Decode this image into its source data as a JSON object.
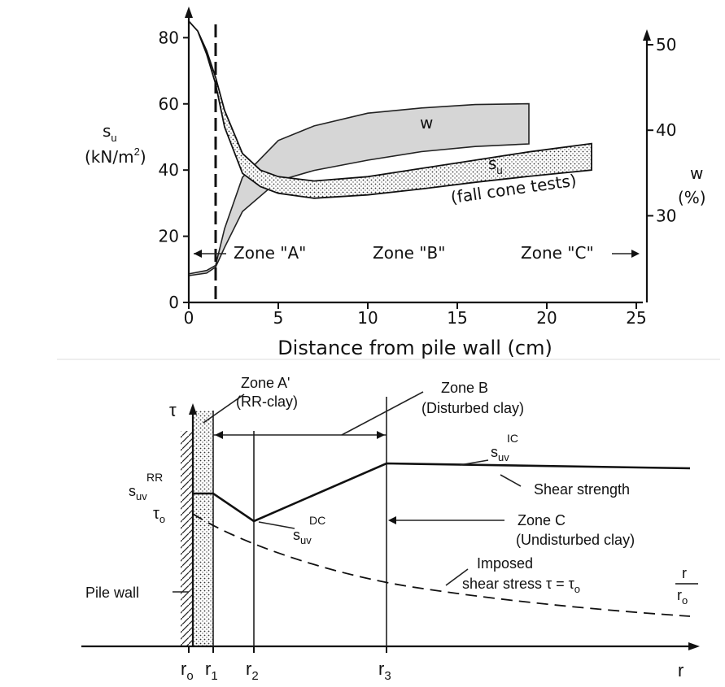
{
  "chart_data": [
    {
      "type": "line",
      "xlabel": "Distance from pile wall (cm)",
      "ylabel_left": "s",
      "ylabel_left_sub": "u",
      "ylabel_left_unit": "(kN/m",
      "ylabel_left_unit_sup": "2",
      "ylabel_left_unit_end": ")",
      "ylabel_right": "w",
      "ylabel_right_unit": "(%)",
      "xlim": [
        0,
        25
      ],
      "ylim_left": [
        0,
        85
      ],
      "ylim_right": [
        20,
        53
      ],
      "x_ticks": [
        "0",
        "5",
        "10",
        "15",
        "20",
        "25"
      ],
      "y_left_ticks": [
        "0",
        "20",
        "40",
        "60",
        "80"
      ],
      "y_right_ticks": [
        "30",
        "40",
        "50"
      ],
      "grid": false,
      "series": [
        {
          "name": "w",
          "type": "band",
          "axis": "right",
          "x": [
            0,
            1,
            1.5,
            2,
            3,
            5,
            7,
            10,
            13,
            16,
            19
          ],
          "upper": [
            23.2,
            23.6,
            24.2,
            28.5,
            34.5,
            38.8,
            40.5,
            42,
            42.6,
            43,
            43.1
          ],
          "lower": [
            23,
            23.3,
            24,
            26.3,
            30.5,
            34.1,
            35.3,
            36.5,
            37.5,
            38.1,
            38.4
          ]
        },
        {
          "name": "s",
          "name_sub": "u",
          "type": "band",
          "axis": "left",
          "x": [
            0,
            0.5,
            1,
            1.5,
            2,
            3,
            4,
            5,
            7,
            10,
            13,
            16,
            19,
            22.5
          ],
          "upper": [
            85,
            82,
            76,
            68,
            58,
            45,
            40,
            38,
            36.7,
            38,
            40.5,
            43,
            45.5,
            48
          ],
          "lower": [
            85,
            82,
            75,
            66,
            53,
            39,
            35,
            33,
            31.5,
            32.5,
            34.3,
            36.3,
            38.1,
            40
          ]
        }
      ],
      "annotations": {
        "w_label": "w",
        "su_label": "s",
        "su_label_sub": "u",
        "fall_cone": "(fall cone tests)",
        "zone_a": "Zone \"A\"",
        "zone_b": "Zone \"B\"",
        "zone_c": "Zone \"C\"",
        "zone_boundary_x": 1.5
      }
    },
    {
      "type": "diagram",
      "y_axis_label": "τ",
      "x_axis_label": "r",
      "x_ticks": [
        {
          "label": "r",
          "sub": "o"
        },
        {
          "label": "r",
          "sub": "1"
        },
        {
          "label": "r",
          "sub": "2"
        },
        {
          "label": "r",
          "sub": "3"
        }
      ],
      "labels": {
        "zone_a_title": "Zone A'",
        "zone_a_sub": "(RR-clay)",
        "zone_b_title": "Zone B",
        "zone_b_sub": "(Disturbed clay)",
        "zone_c_title": "Zone C",
        "zone_c_sub": "(Undisturbed clay)",
        "suv_rr_sup": "RR",
        "suv_dc_sup": "DC",
        "suv_ic_sup": "IC",
        "suv": "s",
        "suv_sub": "uv",
        "tau_o": "τ",
        "tau_o_sub": "o",
        "shear_strength": "Shear strength",
        "pile_wall": "Pile wall",
        "imposed_1": "Imposed",
        "imposed_2": "shear stress  τ = τ",
        "imposed_2_sub": "o",
        "frac_num": "r",
        "frac_den": "r",
        "frac_den_sub": "o"
      }
    }
  ]
}
